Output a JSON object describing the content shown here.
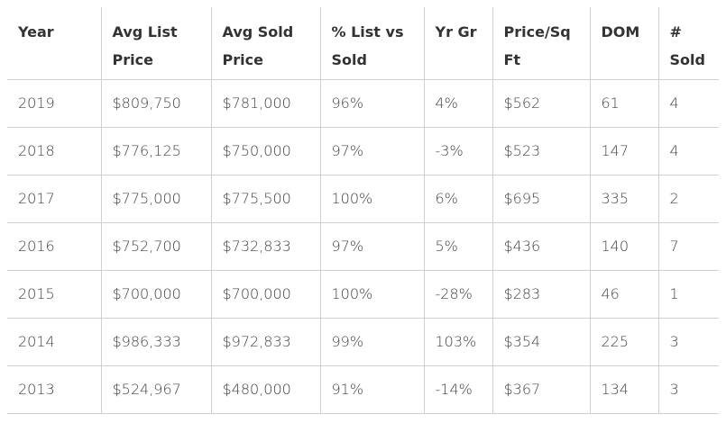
{
  "table": {
    "header": [
      "Year",
      "Avg List Price",
      "Avg Sold Price",
      "% List vs Sold",
      "Yr Gr",
      "Price/Sq Ft",
      "DOM",
      "# Sold"
    ],
    "rows": [
      [
        "2019",
        "$809,750",
        "$781,000",
        "96%",
        "4%",
        "$562",
        "61",
        "4"
      ],
      [
        "2018",
        "$776,125",
        "$750,000",
        "97%",
        "-3%",
        "$523",
        "147",
        "4"
      ],
      [
        "2017",
        "$775,000",
        "$775,500",
        "100%",
        "6%",
        "$695",
        "335",
        "2"
      ],
      [
        "2016",
        "$752,700",
        "$732,833",
        "97%",
        "5%",
        "$436",
        "140",
        "7"
      ],
      [
        "2015",
        "$700,000",
        "$700,000",
        "100%",
        "-28%",
        "$283",
        "46",
        "1"
      ],
      [
        "2014",
        "$986,333",
        "$972,833",
        "99%",
        "103%",
        "$354",
        "225",
        "3"
      ],
      [
        "2013",
        "$524,967",
        "$480,000",
        "91%",
        "-14%",
        "$367",
        "134",
        "3"
      ]
    ]
  }
}
